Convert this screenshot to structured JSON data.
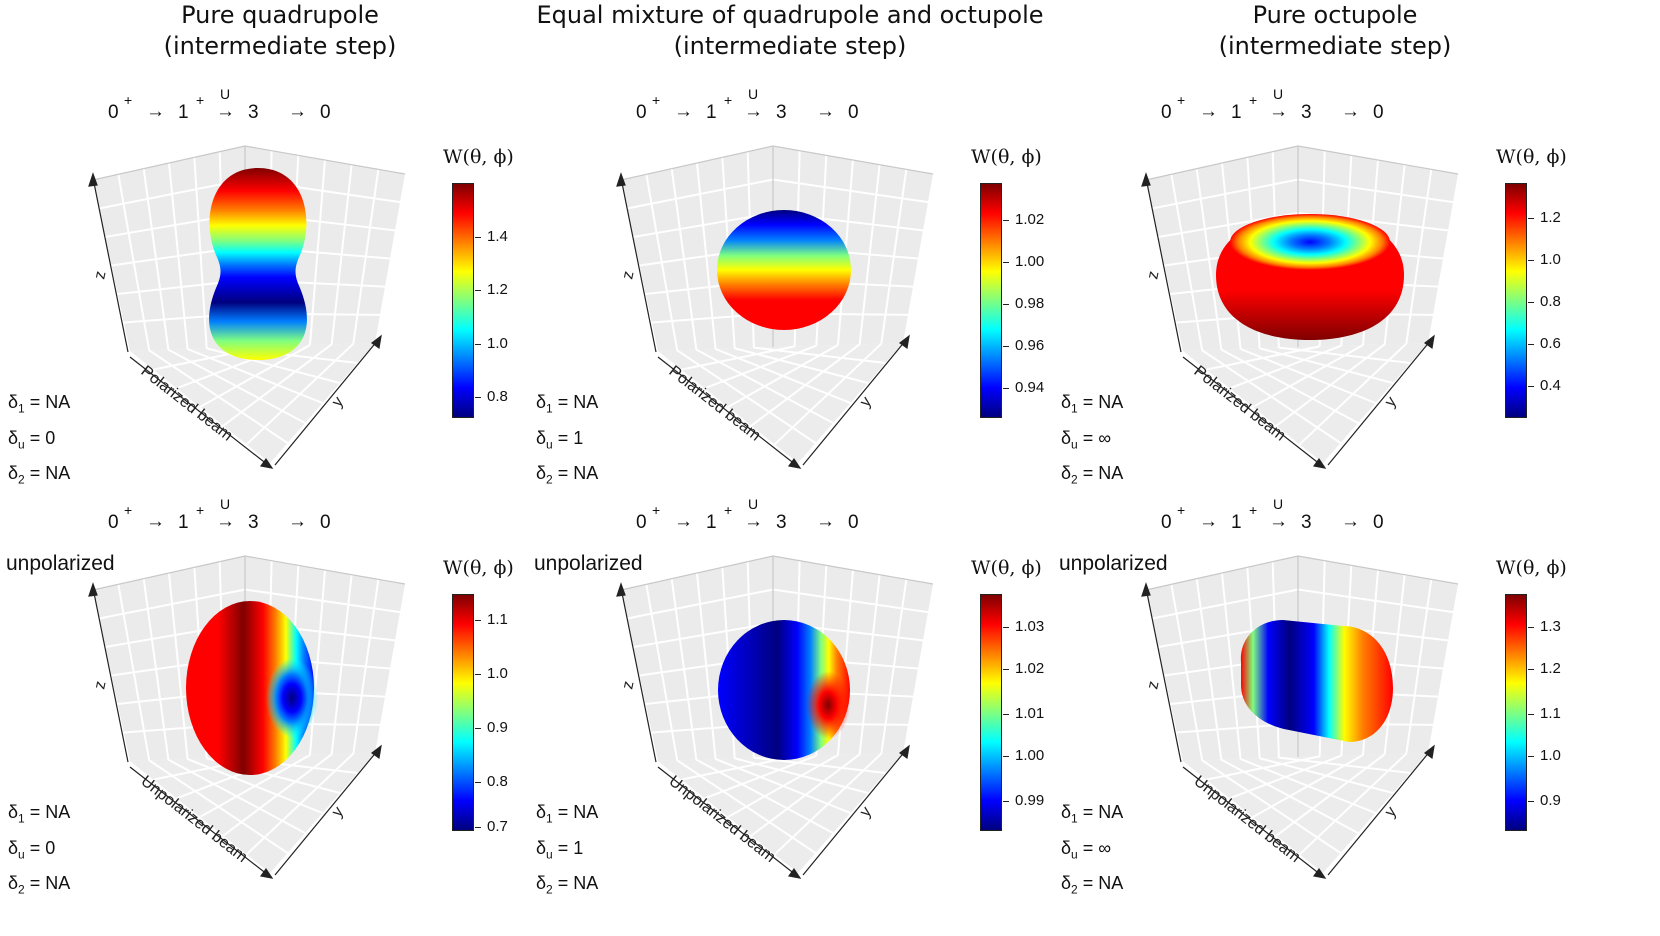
{
  "colorscale": [
    "#00007f",
    "#0000ff",
    "#007fff",
    "#00ffff",
    "#7fff7f",
    "#ffff00",
    "#ff7f00",
    "#ff0000",
    "#7f0000"
  ],
  "titles": [
    [
      "Pure quadrupole",
      "(intermediate step)"
    ],
    [
      "Equal mixture of quadrupole and octupole",
      "(intermediate step)"
    ],
    [
      "Pure octupole",
      "(intermediate step)"
    ]
  ],
  "decay": {
    "s0": "0",
    "p0": "+",
    "s1": "1",
    "p1": "+",
    "u": "U",
    "s2": "3",
    "s3": "0"
  },
  "axes": {
    "z": "z",
    "y": "y"
  },
  "colorbar_title": "W(θ, ϕ)",
  "panels": [
    {
      "beam": "Polarized beam",
      "note": "",
      "d1": "NA",
      "du": "0",
      "d2": "NA",
      "ticks": [
        "1.4",
        "1.2",
        "1.0",
        "0.8"
      ],
      "tick_pos": [
        0.23,
        0.46,
        0.69,
        0.92
      ],
      "shape": "peanut"
    },
    {
      "beam": "Polarized beam",
      "note": "",
      "d1": "NA",
      "du": "1",
      "d2": "NA",
      "ticks": [
        "1.02",
        "1.00",
        "0.98",
        "0.96",
        "0.94"
      ],
      "tick_pos": [
        0.16,
        0.34,
        0.52,
        0.7,
        0.88
      ],
      "shape": "ball-top"
    },
    {
      "beam": "Polarized beam",
      "note": "",
      "d1": "NA",
      "du": "∞",
      "d2": "NA",
      "ticks": [
        "1.2",
        "1.0",
        "0.8",
        "0.6",
        "0.4"
      ],
      "tick_pos": [
        0.15,
        0.33,
        0.51,
        0.69,
        0.87
      ],
      "shape": "donut"
    },
    {
      "beam": "Unpolarized beam",
      "note": "unpolarized",
      "d1": "NA",
      "du": "0",
      "d2": "NA",
      "ticks": [
        "1.1",
        "1.0",
        "0.9",
        "0.8",
        "0.7"
      ],
      "tick_pos": [
        0.11,
        0.34,
        0.57,
        0.8,
        0.99
      ],
      "shape": "ellip"
    },
    {
      "beam": "Unpolarized beam",
      "note": "unpolarized",
      "d1": "NA",
      "du": "1",
      "d2": "NA",
      "ticks": [
        "1.03",
        "1.02",
        "1.01",
        "1.00",
        "0.99"
      ],
      "tick_pos": [
        0.14,
        0.32,
        0.51,
        0.69,
        0.88
      ],
      "shape": "ball-side"
    },
    {
      "beam": "Unpolarized beam",
      "note": "unpolarized",
      "d1": "NA",
      "du": "∞",
      "d2": "NA",
      "ticks": [
        "1.3",
        "1.2",
        "1.1",
        "1.0",
        "0.9"
      ],
      "tick_pos": [
        0.14,
        0.32,
        0.51,
        0.69,
        0.88
      ],
      "shape": "capsule"
    }
  ]
}
